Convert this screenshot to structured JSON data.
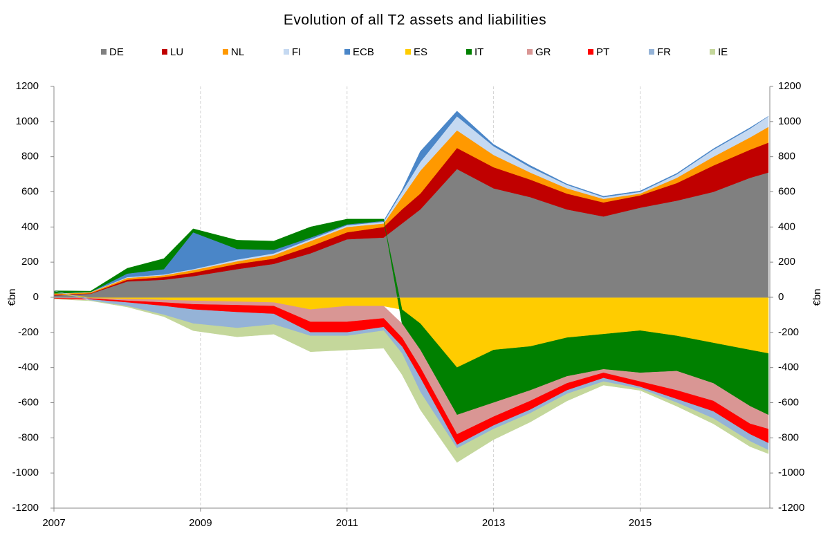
{
  "chart_data": {
    "type": "area",
    "stacked": true,
    "title": "Evolution of all T2 assets and liabilities",
    "y_label": "€bn",
    "y2_label": "€bn",
    "x": [
      2007.0,
      2007.5,
      2008.0,
      2008.5,
      2008.9,
      2009.5,
      2010.0,
      2010.5,
      2011.0,
      2011.5,
      2011.75,
      2012.0,
      2012.5,
      2013.0,
      2013.5,
      2014.0,
      2014.5,
      2015.0,
      2015.5,
      2016.0,
      2016.5,
      2016.75
    ],
    "xlim": [
      2007,
      2016.77
    ],
    "xticks": [
      2007,
      2009,
      2011,
      2013,
      2015
    ],
    "ylim": [
      -1200,
      1200
    ],
    "yticks": [
      -1200,
      -1000,
      -800,
      -600,
      -400,
      -200,
      0,
      200,
      400,
      600,
      800,
      1000,
      1200
    ],
    "y2lim": [
      -1200,
      1200
    ],
    "y2ticks": [
      -1200,
      -1000,
      -800,
      -600,
      -400,
      -200,
      0,
      200,
      400,
      600,
      800,
      1000,
      1200
    ],
    "grid": "x",
    "legend": "top",
    "series": [
      {
        "name": "DE",
        "color": "#808080",
        "values": [
          10,
          20,
          90,
          100,
          120,
          160,
          190,
          250,
          330,
          340,
          420,
          500,
          730,
          620,
          570,
          500,
          460,
          510,
          550,
          600,
          680,
          710
        ]
      },
      {
        "name": "LU",
        "color": "#c00000",
        "values": [
          5,
          3,
          10,
          15,
          20,
          30,
          30,
          40,
          40,
          60,
          80,
          90,
          120,
          120,
          100,
          90,
          80,
          70,
          100,
          150,
          160,
          170
        ]
      },
      {
        "name": "NL",
        "color": "#ff9900",
        "values": [
          5,
          5,
          10,
          10,
          15,
          15,
          20,
          30,
          30,
          20,
          70,
          130,
          100,
          70,
          40,
          30,
          20,
          10,
          30,
          50,
          70,
          90
        ]
      },
      {
        "name": "FI",
        "color": "#c5d9f1",
        "values": [
          2,
          2,
          5,
          5,
          5,
          10,
          10,
          10,
          10,
          10,
          30,
          50,
          80,
          50,
          30,
          20,
          10,
          10,
          20,
          40,
          50,
          60
        ]
      },
      {
        "name": "ECB",
        "color": "#4a86c8",
        "values": [
          0,
          0,
          20,
          30,
          210,
          60,
          20,
          10,
          5,
          5,
          10,
          60,
          30,
          10,
          10,
          5,
          5,
          5,
          5,
          5,
          5,
          0
        ]
      },
      {
        "name": "ES",
        "color": "#ffcc00",
        "values": [
          0,
          -5,
          -10,
          -15,
          -20,
          -25,
          -30,
          -70,
          -50,
          -50,
          -70,
          -150,
          -400,
          -300,
          -280,
          -230,
          -210,
          -190,
          -220,
          -260,
          -300,
          -320
        ]
      },
      {
        "name": "IT",
        "color": "#008000",
        "values": [
          15,
          5,
          30,
          60,
          20,
          50,
          50,
          60,
          30,
          10,
          -80,
          -150,
          -270,
          -300,
          -250,
          -220,
          -200,
          -240,
          -200,
          -230,
          -320,
          -350
        ]
      },
      {
        "name": "GR",
        "color": "#d99694",
        "values": [
          -5,
          -3,
          -10,
          -15,
          -20,
          -20,
          -20,
          -70,
          -90,
          -70,
          -80,
          -100,
          -110,
          -80,
          -60,
          -40,
          -20,
          -50,
          -110,
          -100,
          -100,
          -80
        ]
      },
      {
        "name": "PT",
        "color": "#ff0000",
        "values": [
          -3,
          -5,
          -10,
          -20,
          -30,
          -40,
          -45,
          -60,
          -60,
          -50,
          -50,
          -60,
          -60,
          -50,
          -50,
          -40,
          -30,
          -30,
          -50,
          -60,
          -60,
          -80
        ]
      },
      {
        "name": "FR",
        "color": "#95b3d7",
        "values": [
          0,
          -5,
          -20,
          -50,
          -80,
          -90,
          -60,
          -20,
          -20,
          -20,
          -40,
          -80,
          -20,
          -20,
          -20,
          -20,
          -20,
          -10,
          -20,
          -40,
          -40,
          -40
        ]
      },
      {
        "name": "IE",
        "color": "#c4d79b",
        "values": [
          -2,
          -2,
          -5,
          -10,
          -40,
          -50,
          -55,
          -90,
          -80,
          -100,
          -120,
          -100,
          -80,
          -60,
          -50,
          -40,
          -20,
          -10,
          -20,
          -30,
          -30,
          -20
        ]
      }
    ]
  }
}
